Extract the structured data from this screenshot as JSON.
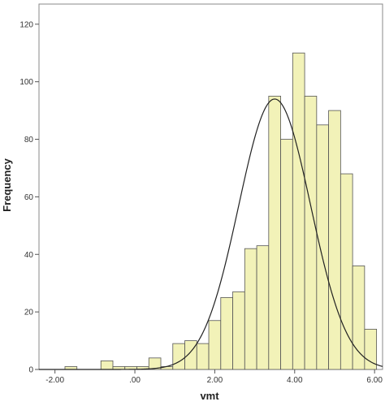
{
  "chart_data": {
    "type": "bar",
    "subtype": "histogram",
    "xlabel": "vmt",
    "ylabel": "Frequency",
    "xlim": [
      -2.4,
      6.2
    ],
    "ylim": [
      0,
      127
    ],
    "x_ticks": [
      {
        "value": -2,
        "label": "-2.00"
      },
      {
        "value": 0,
        "label": ".00"
      },
      {
        "value": 2,
        "label": "2.00"
      },
      {
        "value": 4,
        "label": "4.00"
      },
      {
        "value": 6,
        "label": "6.00"
      }
    ],
    "y_ticks": [
      0,
      20,
      40,
      60,
      80,
      100,
      120
    ],
    "bin_width": 0.3,
    "bins": [
      {
        "start": -1.75,
        "count": 1
      },
      {
        "start": -1.15,
        "count": 0
      },
      {
        "start": -0.85,
        "count": 3
      },
      {
        "start": -0.55,
        "count": 1
      },
      {
        "start": -0.25,
        "count": 1
      },
      {
        "start": 0.05,
        "count": 1
      },
      {
        "start": 0.35,
        "count": 4
      },
      {
        "start": 0.65,
        "count": 1
      },
      {
        "start": 0.95,
        "count": 9
      },
      {
        "start": 1.25,
        "count": 10
      },
      {
        "start": 1.55,
        "count": 9
      },
      {
        "start": 1.85,
        "count": 17
      },
      {
        "start": 2.15,
        "count": 25
      },
      {
        "start": 2.45,
        "count": 27
      },
      {
        "start": 2.75,
        "count": 42
      },
      {
        "start": 3.05,
        "count": 43
      },
      {
        "start": 3.35,
        "count": 95
      },
      {
        "start": 3.65,
        "count": 80
      },
      {
        "start": 3.95,
        "count": 110
      },
      {
        "start": 4.25,
        "count": 95
      },
      {
        "start": 4.55,
        "count": 85
      },
      {
        "start": 4.85,
        "count": 90
      },
      {
        "start": 5.15,
        "count": 68
      },
      {
        "start": 5.45,
        "count": 36
      },
      {
        "start": 5.75,
        "count": 14
      }
    ],
    "normal_curve": {
      "mean": 3.5,
      "sd": 0.9,
      "peak": 94
    },
    "grid": false,
    "bar_color": "#f2f2b8",
    "bar_stroke": "#555555",
    "curve_color": "#222222"
  }
}
